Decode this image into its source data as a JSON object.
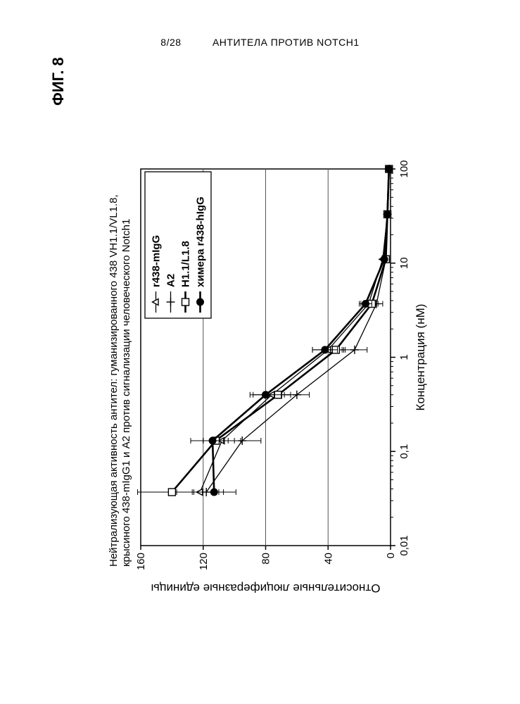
{
  "page_header": {
    "pagenum": "8/28",
    "doc_title": "АНТИТЕЛА ПРОТИВ NOTCH1"
  },
  "figure_label": "ФИГ. 8",
  "chart": {
    "type": "line",
    "rotated": true,
    "title_lines": [
      "Нейтрализующая активность антител: гуманизированного 438 VH1.1/VL1.8,",
      "крысиного 438-mIgG1 и А2 против сигнализации человеческого Notch1"
    ],
    "title_fontsize": 15,
    "x_axis": {
      "label": "Концентрация (нМ)",
      "scale": "log",
      "min": 0.01,
      "max": 100,
      "ticks": [
        0.01,
        0.1,
        1,
        10,
        100
      ],
      "tick_labels": [
        "0,01",
        "0,1",
        "1",
        "10",
        "100"
      ],
      "label_fontsize": 17
    },
    "y_axis": {
      "label": "Относительные люциферазные единицы",
      "min": 0,
      "max": 160,
      "ticks": [
        0,
        40,
        80,
        120,
        160
      ],
      "tick_labels": [
        "0",
        "40",
        "80",
        "120",
        "160"
      ],
      "label_fontsize": 17,
      "grid": true,
      "grid_color": "#555555"
    },
    "plot_bg": "#ffffff",
    "axis_color": "#000000",
    "tick_fontsize": 15,
    "series_order": [
      "r438_migG",
      "A2",
      "H11_L18",
      "chimera"
    ],
    "series": {
      "r438_migG": {
        "label": "r438-mIgG",
        "marker": "triangle-open",
        "line_width": 1.3,
        "color": "#000000",
        "fill": "#ffffff",
        "x": [
          0.037,
          0.13,
          0.4,
          1.2,
          3.7,
          11,
          33,
          100
        ],
        "y": [
          122,
          108,
          76,
          40,
          14,
          5,
          2,
          1
        ],
        "yerr": [
          15,
          12,
          12,
          10,
          5,
          0,
          0,
          0
        ]
      },
      "A2": {
        "label": "А2",
        "marker": "plus",
        "line_width": 1.3,
        "color": "#000000",
        "fill": "#000000",
        "x": [
          0.037,
          0.13,
          0.4,
          1.2,
          3.7,
          11,
          33,
          100
        ],
        "y": [
          118,
          95,
          60,
          23,
          9,
          3,
          2,
          1
        ],
        "yerr": [
          8,
          12,
          8,
          8,
          4,
          0,
          0,
          0
        ]
      },
      "H11_L18": {
        "label": "H1.1/L1.8",
        "marker": "square-open",
        "line_width": 2.6,
        "color": "#000000",
        "fill": "#ffffff",
        "x": [
          0.037,
          0.13,
          0.4,
          1.2,
          3.7,
          11,
          33,
          100
        ],
        "y": [
          140,
          112,
          72,
          35,
          12,
          3,
          2,
          1
        ],
        "yerr": [
          22,
          8,
          8,
          6,
          4,
          0,
          0,
          0
        ]
      },
      "chimera": {
        "label": "химера r438-hIgG",
        "marker": "circle-filled",
        "line_width": 2.6,
        "color": "#000000",
        "fill": "#000000",
        "x": [
          0.037,
          0.13,
          0.4,
          1.2,
          3.7,
          11,
          33,
          100
        ],
        "y": [
          113,
          114,
          80,
          42,
          16,
          4,
          2,
          1
        ],
        "yerr": [
          14,
          14,
          10,
          8,
          4,
          0,
          0,
          0
        ]
      }
    },
    "legend": {
      "position": "inside-top-right",
      "border_color": "#000000",
      "bg": "#ffffff",
      "fontsize": 15
    }
  }
}
